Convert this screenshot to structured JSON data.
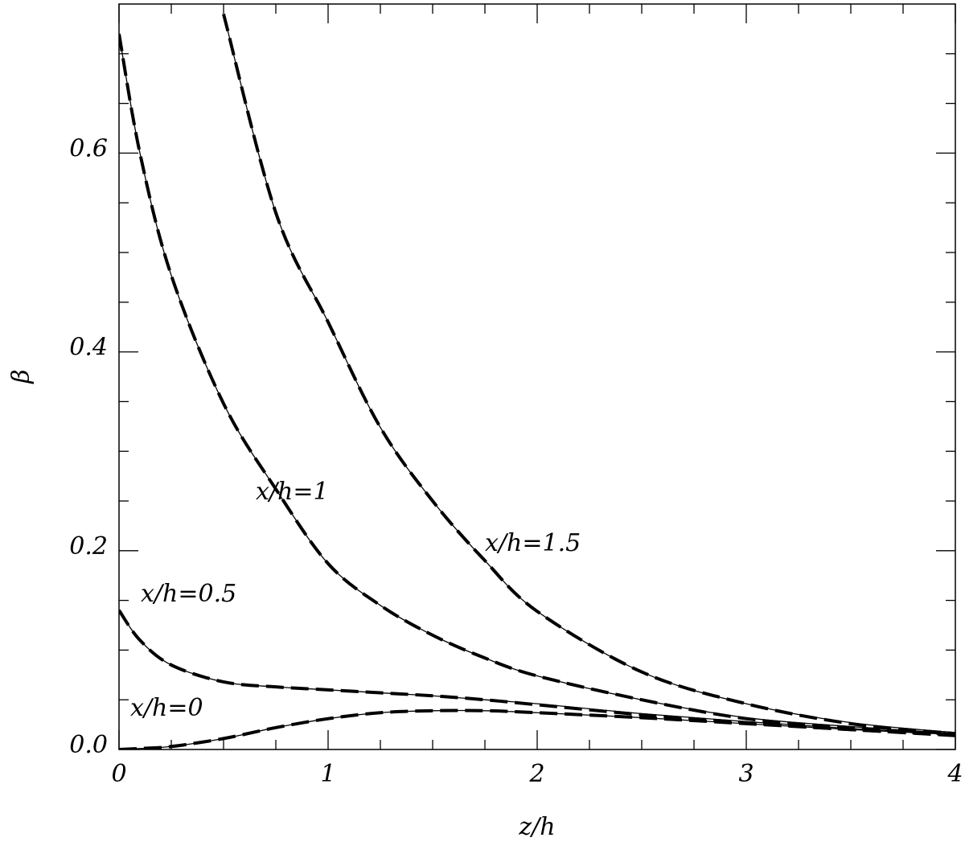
{
  "chart_data": {
    "type": "line",
    "xlabel": "z/h",
    "ylabel": "β",
    "x": [
      0,
      0.1,
      0.25,
      0.5,
      0.75,
      1,
      1.25,
      1.5,
      1.75,
      2,
      2.5,
      3,
      3.5,
      4
    ],
    "series": [
      {
        "color": "#000000",
        "linestyle": "solid",
        "values": [
          0,
          0.001,
          0.003,
          0.011,
          0.022,
          0.031,
          0.037,
          0.039,
          0.039,
          0.037,
          0.032,
          0.026,
          0.02,
          0.015
        ]
      },
      {
        "color": "#000000",
        "linestyle": "dashed",
        "values": [
          0,
          0.001,
          0.003,
          0.011,
          0.022,
          0.031,
          0.037,
          0.039,
          0.039,
          0.037,
          0.032,
          0.026,
          0.02,
          0.014
        ]
      },
      {
        "color": "#000000",
        "linestyle": "solid",
        "values": [
          0.14,
          0.11,
          0.085,
          0.068,
          0.063,
          0.06,
          0.057,
          0.054,
          0.05,
          0.046,
          0.036,
          0.028,
          0.021,
          0.016
        ]
      },
      {
        "color": "#000000",
        "linestyle": "dashed",
        "values": [
          0.14,
          0.11,
          0.085,
          0.068,
          0.063,
          0.06,
          0.057,
          0.054,
          0.05,
          0.045,
          0.035,
          0.027,
          0.02,
          0.015
        ]
      },
      {
        "color": "#000000",
        "linestyle": "solid",
        "values": [
          0.72,
          0.6,
          0.477,
          0.348,
          0.262,
          0.187,
          0.145,
          0.115,
          0.092,
          0.074,
          0.05,
          0.032,
          0.023,
          0.016
        ]
      },
      {
        "color": "#000000",
        "linestyle": "dashed",
        "values": [
          0.72,
          0.6,
          0.477,
          0.348,
          0.262,
          0.187,
          0.145,
          0.115,
          0.092,
          0.074,
          0.05,
          0.031,
          0.022,
          0.015
        ]
      },
      {
        "color": "#000000",
        "linestyle": "solid",
        "values": [
          null,
          null,
          null,
          0.74,
          0.54,
          0.43,
          0.324,
          0.25,
          0.19,
          0.139,
          0.078,
          0.046,
          0.027,
          0.017
        ]
      },
      {
        "color": "#000000",
        "linestyle": "dashed",
        "values": [
          null,
          null,
          null,
          0.74,
          0.54,
          0.43,
          0.324,
          0.25,
          0.19,
          0.139,
          0.078,
          0.046,
          0.026,
          0.016
        ]
      }
    ],
    "annotations": [
      "x/h=0",
      "x/h=0.5",
      "x/h=1",
      "x/h=1.5"
    ],
    "xlim": [
      0,
      4
    ],
    "ylim": [
      0,
      0.75
    ],
    "xticks": [
      0,
      1,
      2,
      3,
      4
    ],
    "yticks": [
      {
        "value": 0,
        "label": "0.0"
      },
      {
        "value": 0.2,
        "label": "0.2"
      },
      {
        "value": 0.4,
        "label": "0.4"
      },
      {
        "value": 0.6,
        "label": "0.6"
      }
    ],
    "xminorticks": [
      0.25,
      0.5,
      0.75,
      1.25,
      1.5,
      1.75,
      2.25,
      2.5,
      2.75,
      3.25,
      3.5,
      3.75
    ],
    "yminorticks": [
      0.05,
      0.1,
      0.15,
      0.25,
      0.3,
      0.35,
      0.45,
      0.5,
      0.55,
      0.65,
      0.7
    ]
  }
}
